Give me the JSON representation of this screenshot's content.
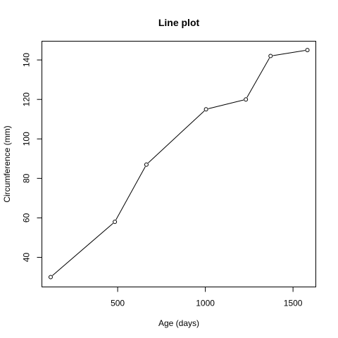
{
  "chart_data": {
    "type": "line",
    "title": "Line plot",
    "xlabel": "Age (days)",
    "ylabel": "Circumference (mm)",
    "xlim": [
      68,
      1630
    ],
    "ylim": [
      25,
      149.5
    ],
    "xticks": [
      500,
      1000,
      1500
    ],
    "yticks": [
      40,
      60,
      80,
      100,
      120,
      140
    ],
    "grid": false,
    "legend": "none",
    "series": [
      {
        "x": [
          118,
          484,
          664,
          1004,
          1231,
          1372,
          1582
        ],
        "y": [
          30,
          58,
          87,
          115,
          120,
          142,
          145
        ],
        "color": "#000000",
        "marker": "open-circle"
      }
    ]
  }
}
